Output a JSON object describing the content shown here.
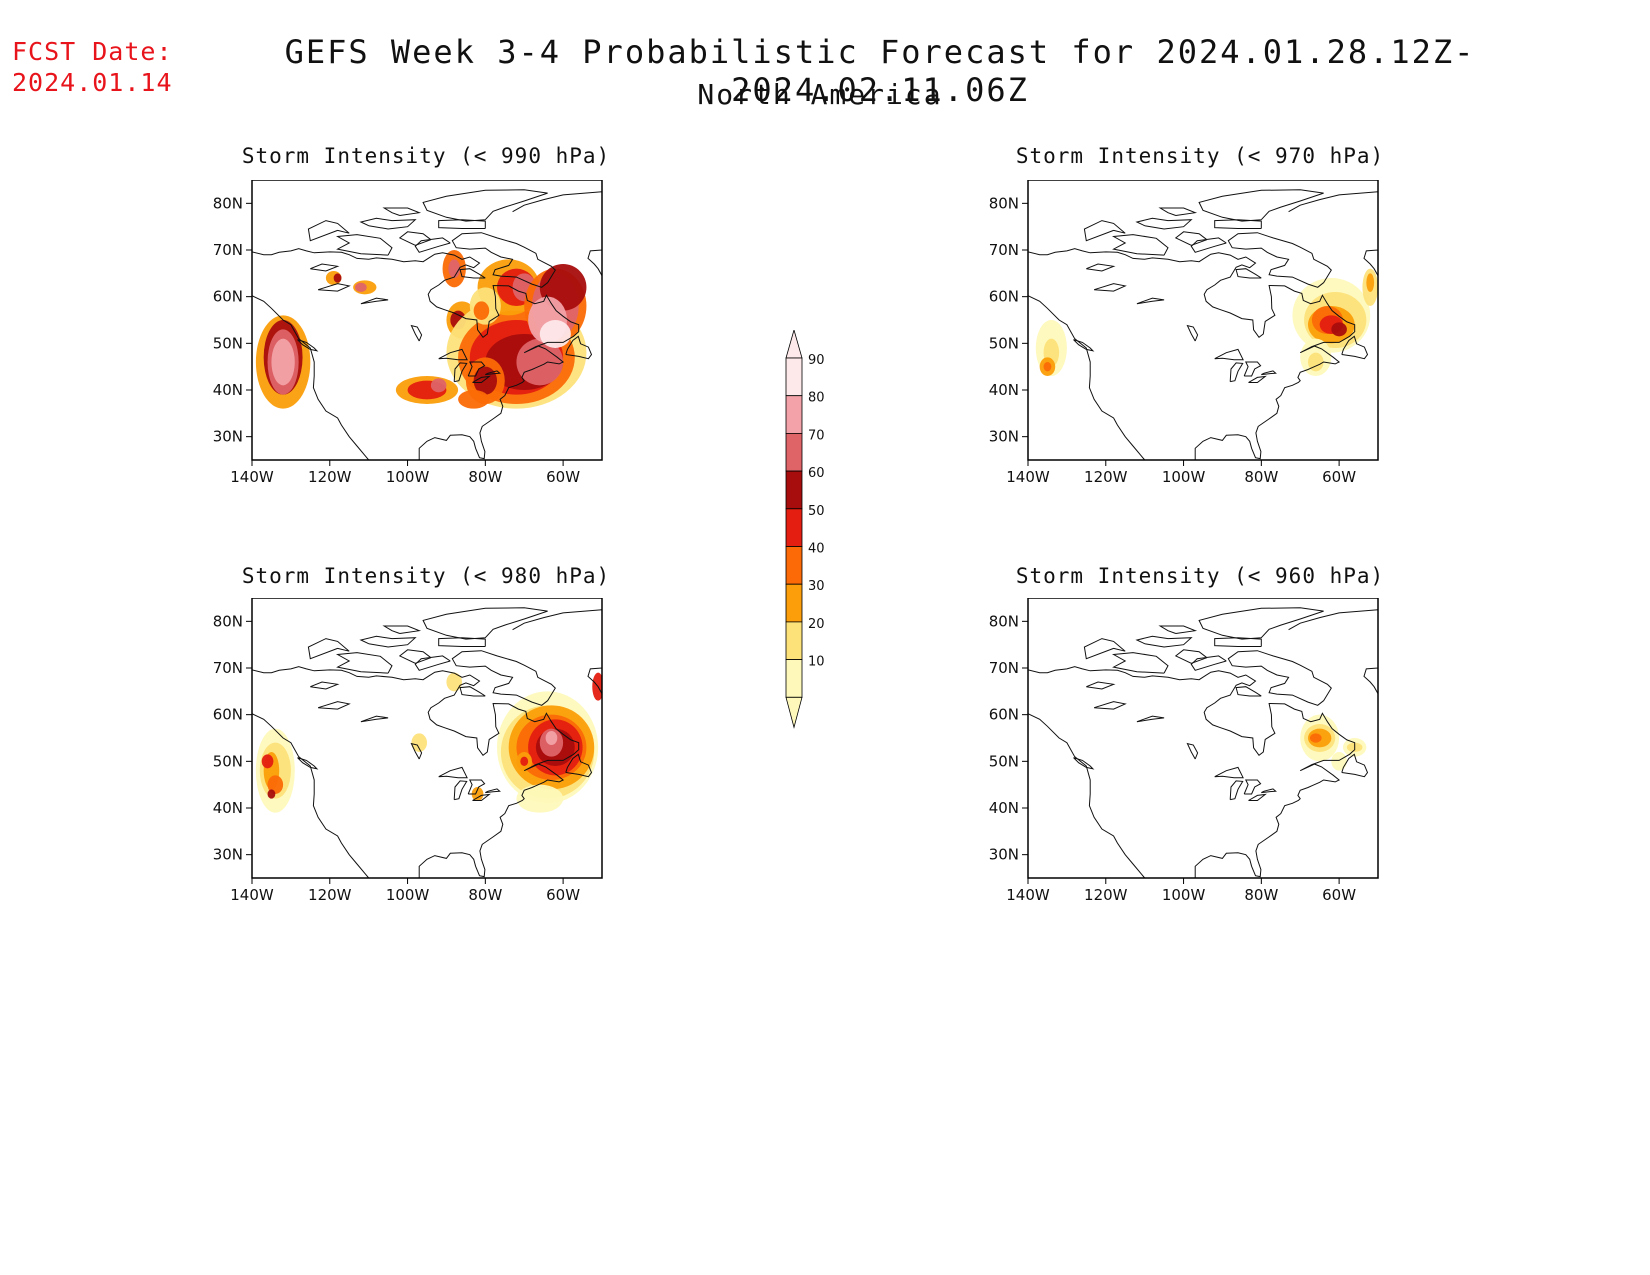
{
  "header": {
    "fcst_label": "FCST Date:",
    "fcst_date": "2024.01.14",
    "title": "GEFS Week 3-4 Probabilistic Forecast for 2024.01.28.12Z-2024.02.11.06Z",
    "subtitle": "North America"
  },
  "axes": {
    "lat_ticks": [
      "80N",
      "70N",
      "60N",
      "50N",
      "40N",
      "30N"
    ],
    "lon_ticks": [
      "140W",
      "120W",
      "100W",
      "80W",
      "60W"
    ]
  },
  "panels": [
    {
      "id": "p990",
      "title": "Storm Intensity (< 990 hPa)"
    },
    {
      "id": "p970",
      "title": "Storm Intensity (< 970 hPa)"
    },
    {
      "id": "p980",
      "title": "Storm Intensity (< 980 hPa)"
    },
    {
      "id": "p960",
      "title": "Storm Intensity (< 960 hPa)"
    }
  ],
  "colorbar": {
    "labels": [
      "90",
      "80",
      "70",
      "60",
      "50",
      "40",
      "30",
      "20",
      "10"
    ],
    "colors": {
      "90": "#fde8ea",
      "80": "#f2a2a8",
      "70": "#de6468",
      "60": "#a80d0d",
      "50": "#e41e10",
      "40": "#fb6a06",
      "30": "#fb9e0a",
      "20": "#fde27a",
      "10": "#fef9bb"
    }
  }
}
